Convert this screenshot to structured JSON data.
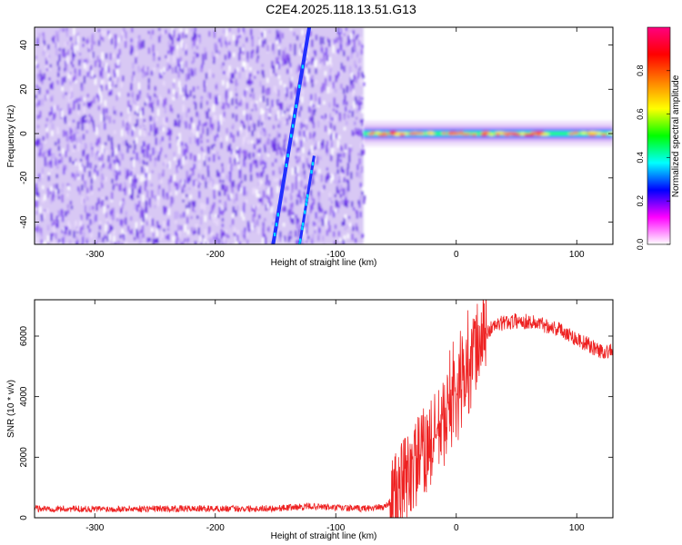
{
  "title": "C2E4.2025.118.13.51.G13",
  "chart_data": [
    {
      "type": "heatmap",
      "xlabel": "Height of straight line (km)",
      "ylabel": "Frequency (Hz)",
      "xlim": [
        -350,
        130
      ],
      "ylim": [
        -50,
        48
      ],
      "xticks": [
        -300,
        -200,
        -100,
        0,
        100
      ],
      "yticks": [
        -40,
        -20,
        0,
        20,
        40
      ],
      "colorbar": {
        "label": "Normalized spectral amplitude",
        "range": [
          0,
          1
        ],
        "ticks": [
          "0.0",
          "0.2",
          "0.4",
          "0.6",
          "0.8"
        ],
        "colors": [
          "#ffffff",
          "#ff00ff",
          "#0000ff",
          "#00ffff",
          "#00ff00",
          "#ffff00",
          "#ff8000",
          "#ff0000",
          "#ff0080"
        ]
      },
      "regions": [
        {
          "name": "noise",
          "x": [
            -350,
            -77
          ],
          "y": [
            -50,
            48
          ],
          "amplitude_level": 0.12
        },
        {
          "name": "carrier",
          "x": [
            -77,
            130
          ],
          "frequency": 0,
          "amplitude_level": 0.6
        },
        {
          "name": "streak",
          "x_start": -152,
          "y_start": -50,
          "x_end": -122,
          "y_end": 48,
          "amplitude_level": 0.3
        },
        {
          "name": "streak",
          "x_start": -130,
          "y_start": -50,
          "x_end": -118,
          "y_end": -10,
          "amplitude_level": 0.2
        }
      ]
    },
    {
      "type": "line",
      "xlabel": "Height of straight line (km)",
      "ylabel": "SNR (10 * v/v)",
      "xlim": [
        -350,
        130
      ],
      "ylim": [
        0,
        7200
      ],
      "xticks": [
        -300,
        -200,
        -100,
        0,
        100
      ],
      "yticks": [
        0,
        2000,
        4000,
        6000
      ],
      "color": "#ee2222",
      "profile": [
        [
          -350,
          300
        ],
        [
          -300,
          290
        ],
        [
          -250,
          300
        ],
        [
          -200,
          300
        ],
        [
          -150,
          310
        ],
        [
          -120,
          380
        ],
        [
          -100,
          330
        ],
        [
          -80,
          300
        ],
        [
          -60,
          350
        ],
        [
          -50,
          700
        ],
        [
          -40,
          1400
        ],
        [
          -30,
          2000
        ],
        [
          -20,
          2500
        ],
        [
          -10,
          3200
        ],
        [
          0,
          3900
        ],
        [
          10,
          4900
        ],
        [
          20,
          5900
        ],
        [
          30,
          6300
        ],
        [
          40,
          6450
        ],
        [
          50,
          6500
        ],
        [
          60,
          6480
        ],
        [
          70,
          6400
        ],
        [
          80,
          6300
        ],
        [
          90,
          6150
        ],
        [
          100,
          5900
        ],
        [
          110,
          5700
        ],
        [
          120,
          5500
        ],
        [
          130,
          5500
        ]
      ]
    }
  ]
}
